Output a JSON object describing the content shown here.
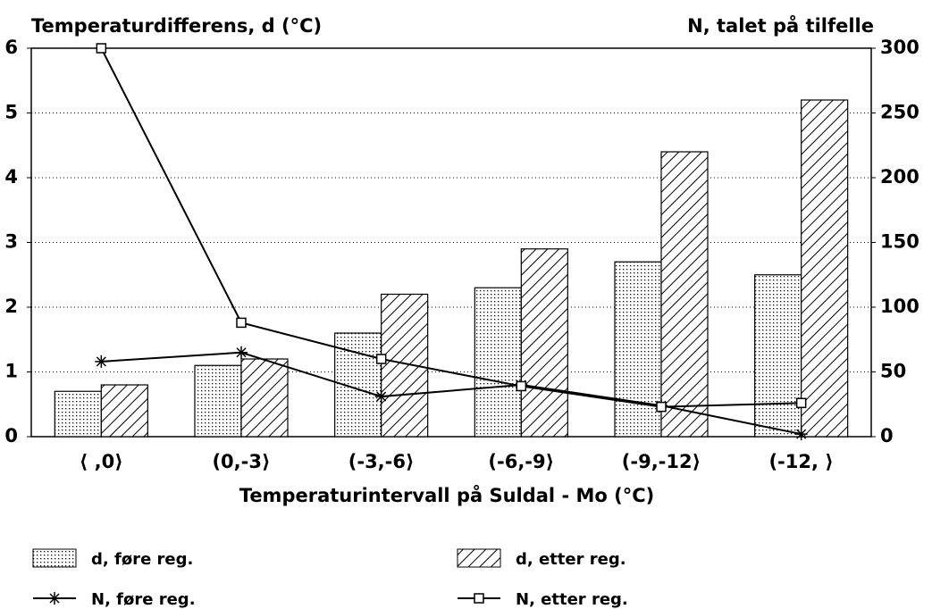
{
  "chart_data": {
    "type": "bar",
    "title": "Temperaturdifferens, d (°C)",
    "y2_label": "N, talet på tilfelle",
    "x_label": "Temperaturintervall på Suldal - Mo (°C)",
    "categories": [
      "⟨ ,0⟩",
      "(0,-3⟩",
      "(-3,-6⟩",
      "(-6,-9⟩",
      "(-9,-12⟩",
      "(-12, ⟩"
    ],
    "series": [
      {
        "name": "d, føre reg.",
        "type": "bar",
        "pattern": "dots",
        "color": "#000000",
        "values": [
          0.7,
          1.1,
          1.6,
          2.3,
          2.7,
          2.5
        ]
      },
      {
        "name": "d, etter reg.",
        "type": "bar",
        "pattern": "hatch",
        "color": "#000000",
        "values": [
          0.8,
          1.2,
          2.2,
          2.9,
          4.4,
          5.2
        ]
      },
      {
        "name": "N, føre reg.",
        "type": "line",
        "marker": "star",
        "axis": "y2",
        "color": "#000000",
        "values": [
          58,
          65,
          31,
          40,
          24,
          2
        ]
      },
      {
        "name": "N, etter reg.",
        "type": "line",
        "marker": "square",
        "axis": "y2",
        "color": "#000000",
        "values": [
          300,
          88,
          60,
          39,
          23,
          26
        ]
      }
    ],
    "ylim": [
      0,
      6
    ],
    "yticks": [
      0,
      1,
      2,
      3,
      4,
      5,
      6
    ],
    "y2lim": [
      0,
      300
    ],
    "y2ticks": [
      0,
      50,
      100,
      150,
      200,
      250,
      300
    ],
    "grid": true
  }
}
